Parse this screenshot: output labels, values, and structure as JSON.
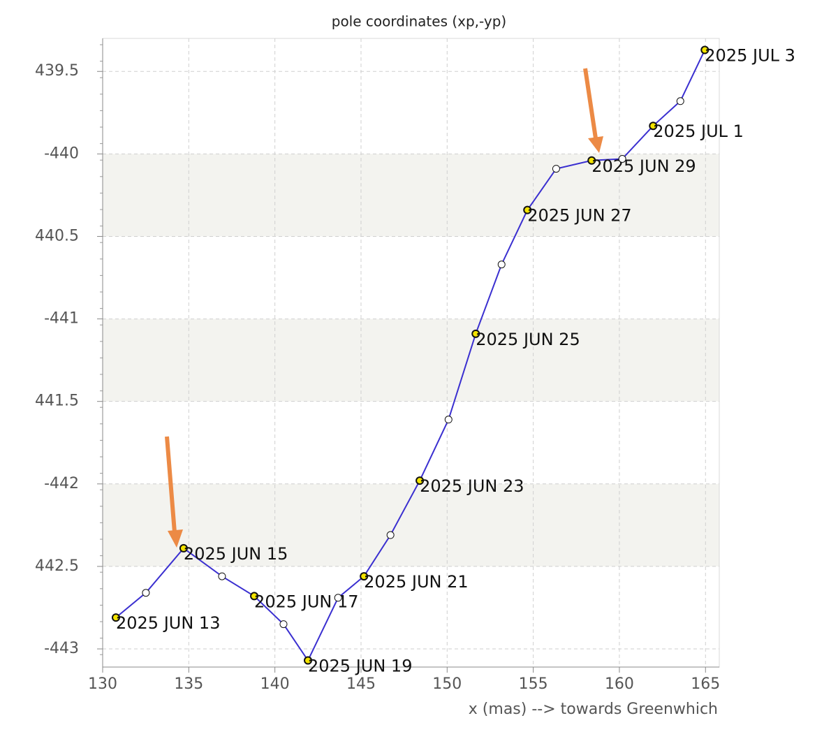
{
  "chart_data": {
    "type": "line",
    "title": "pole coordinates (xp,-yp)",
    "xlabel": "x (mas) --> towards Greenwhich",
    "x": [
      130.77,
      132.51,
      134.7,
      136.93,
      138.8,
      140.5,
      141.92,
      143.67,
      145.17,
      146.71,
      148.41,
      150.08,
      151.66,
      153.16,
      154.66,
      156.33,
      158.39,
      160.17,
      161.96,
      163.54,
      164.96
    ],
    "values": [
      -442.81,
      -442.66,
      -442.39,
      -442.56,
      -442.68,
      -442.85,
      -443.07,
      -442.69,
      -442.56,
      -442.31,
      -441.98,
      -441.61,
      -441.09,
      -440.67,
      -440.34,
      -440.09,
      -440.04,
      -440.03,
      -439.83,
      -439.68,
      -439.37
    ],
    "point_labels": [
      "2025 JUN 13",
      null,
      "2025 JUN 15",
      null,
      "2025 JUN 17",
      null,
      "2025 JUN 19",
      null,
      "2025 JUN 21",
      null,
      "2025 JUN 23",
      null,
      "2025 JUN 25",
      null,
      "2025 JUN 27",
      null,
      "2025 JUN 29",
      null,
      "2025 JUL 1",
      null,
      "2025 JUL 3"
    ],
    "color": "#3a2fd0",
    "labeled_marker_color": "#f4e400",
    "open_marker_color": "#ffffff",
    "xlim": [
      130,
      165.8
    ],
    "xticks": [
      130,
      135,
      140,
      145,
      150,
      155,
      160,
      165
    ],
    "ylim": [
      -443.11,
      -439.3
    ],
    "yticks": [
      -443,
      {
        "value": -442.5,
        "label": "442.5"
      },
      -442,
      {
        "value": -441.5,
        "label": "441.5"
      },
      -441,
      {
        "value": -440.5,
        "label": "440.5"
      },
      -440,
      {
        "value": -439.5,
        "label": "439.5"
      }
    ],
    "grid": true,
    "alternating_bands": true,
    "band_color": "#f3f3ef"
  }
}
